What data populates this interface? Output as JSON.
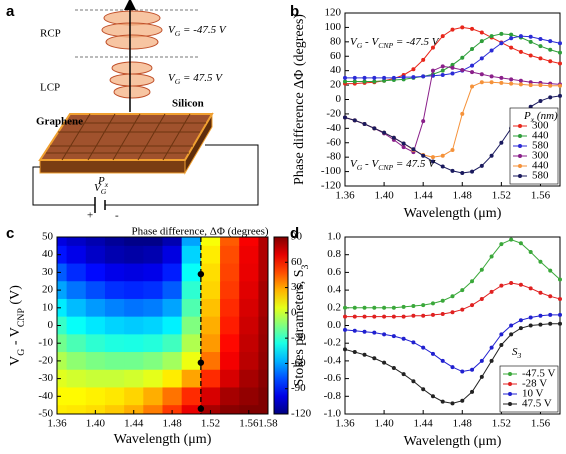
{
  "panel_labels": [
    "a",
    "b",
    "c",
    "d"
  ],
  "diagram": {
    "rcp": "RCP",
    "lcp": "LCP",
    "vg_top": [
      "V",
      "G",
      " = -47.5 V"
    ],
    "vg_bottom": [
      "V",
      "G",
      " = 47.5 V"
    ],
    "graphene": "Graphene",
    "silicon": "Silicon",
    "period": [
      "P",
      "x"
    ],
    "gate": [
      "V",
      "G"
    ],
    "plus": "+",
    "minus": "-"
  },
  "chart_data": [
    {
      "type": "line",
      "x": [
        1.36,
        1.37,
        1.38,
        1.39,
        1.4,
        1.41,
        1.42,
        1.43,
        1.44,
        1.45,
        1.46,
        1.47,
        1.48,
        1.49,
        1.5,
        1.51,
        1.52,
        1.53,
        1.54,
        1.55,
        1.56,
        1.57,
        1.58
      ],
      "xlim": [
        1.36,
        1.58
      ],
      "xticks": [
        1.36,
        {
          "value": 1.4,
          "label": "1.40"
        },
        1.44,
        1.48,
        1.52,
        1.56
      ],
      "ylim": [
        -120,
        120
      ],
      "yticks": [
        -120,
        -100,
        -80,
        -60,
        -40,
        -20,
        0,
        20,
        40,
        60,
        80,
        100,
        120
      ],
      "xlabel": "Wavelength (μm)",
      "ylabel": "Phase difference ΔΦ (degrees)",
      "annotations": [
        [
          "V",
          "G",
          " - V",
          "CNP",
          " = -47.5 V"
        ],
        [
          "V",
          "G",
          " - V",
          "CNP",
          " = 47.5 V"
        ]
      ],
      "legend_title": [
        "P",
        "x",
        "  (nm)"
      ],
      "legend": "lower right",
      "series": [
        {
          "name": "300",
          "color": "#e8261b",
          "values": [
            22,
            22,
            23,
            24,
            26,
            29,
            34,
            42,
            55,
            72,
            88,
            97,
            100,
            98,
            93,
            86,
            79,
            72,
            66,
            61,
            57,
            53,
            50
          ]
        },
        {
          "name": "440",
          "color": "#2e9e3a",
          "values": [
            25,
            25,
            25,
            25,
            26,
            27,
            28,
            30,
            32,
            35,
            40,
            48,
            58,
            70,
            81,
            88,
            91,
            90,
            86,
            80,
            74,
            69,
            65
          ]
        },
        {
          "name": "580",
          "color": "#2b2bd6",
          "values": [
            30,
            30,
            30,
            30,
            30,
            30,
            31,
            31,
            32,
            33,
            34,
            36,
            40,
            47,
            57,
            68,
            78,
            85,
            88,
            87,
            84,
            81,
            78
          ]
        },
        {
          "name": "300",
          "color": "#8a1f8a",
          "values": [
            -25,
            -29,
            -34,
            -40,
            -47,
            -56,
            -66,
            -73,
            -30,
            40,
            46,
            44,
            41,
            38,
            35,
            32,
            30,
            28,
            26,
            24,
            23,
            22,
            21
          ]
        },
        {
          "name": "440",
          "color": "#f5923a",
          "values": [
            -25,
            -29,
            -34,
            -40,
            -46,
            -53,
            -61,
            -70,
            -77,
            -80,
            -78,
            -70,
            -20,
            18,
            24,
            24,
            23,
            22,
            21,
            20,
            20,
            19,
            19
          ]
        },
        {
          "name": "580",
          "color": "#1a1a5e",
          "values": [
            -25,
            -29,
            -34,
            -40,
            -46,
            -53,
            -61,
            -69,
            -78,
            -86,
            -93,
            -99,
            -102,
            -100,
            -92,
            -78,
            -60,
            -40,
            -22,
            -10,
            -2,
            3,
            5
          ]
        }
      ]
    },
    {
      "type": "heatmap",
      "title": "Phase difference, ΔΦ (degrees)",
      "x": [
        1.36,
        1.38,
        1.4,
        1.42,
        1.44,
        1.46,
        1.48,
        1.5,
        1.52,
        1.54,
        1.56,
        1.58
      ],
      "y": [
        50,
        40,
        30,
        20,
        10,
        0,
        -10,
        -20,
        -30,
        -40,
        -50
      ],
      "z": [
        [
          -100,
          -105,
          -110,
          -115,
          -118,
          -118,
          -110,
          -60,
          10,
          45,
          65,
          80
        ],
        [
          -90,
          -98,
          -105,
          -110,
          -112,
          -110,
          -100,
          -50,
          15,
          48,
          67,
          80
        ],
        [
          -75,
          -85,
          -92,
          -98,
          -100,
          -98,
          -88,
          -40,
          18,
          50,
          68,
          80
        ],
        [
          -60,
          -70,
          -78,
          -84,
          -86,
          -84,
          -75,
          -32,
          20,
          52,
          70,
          82
        ],
        [
          -45,
          -55,
          -62,
          -67,
          -70,
          -68,
          -60,
          -25,
          24,
          55,
          72,
          82
        ],
        [
          -30,
          -40,
          -46,
          -50,
          -52,
          -50,
          -44,
          -15,
          28,
          58,
          74,
          84
        ],
        [
          -18,
          -26,
          -32,
          -35,
          -36,
          -34,
          -28,
          -5,
          32,
          62,
          76,
          85
        ],
        [
          -5,
          -12,
          -16,
          -18,
          -18,
          -15,
          -8,
          8,
          40,
          66,
          78,
          86
        ],
        [
          5,
          2,
          0,
          0,
          2,
          6,
          15,
          30,
          55,
          72,
          82,
          88
        ],
        [
          12,
          12,
          14,
          16,
          20,
          28,
          40,
          55,
          72,
          82,
          86,
          90
        ],
        [
          15,
          16,
          18,
          22,
          28,
          38,
          52,
          68,
          82,
          88,
          90,
          90
        ]
      ],
      "xlim": [
        1.36,
        1.58
      ],
      "xticks": [
        1.36,
        {
          "value": 1.4,
          "label": "1.40"
        },
        1.44,
        1.48,
        1.52,
        1.56,
        1.58
      ],
      "ylim": [
        -50,
        50
      ],
      "yticks": [
        -50,
        -40,
        -30,
        -20,
        -10,
        0,
        10,
        20,
        30,
        40,
        50
      ],
      "zlim": [
        -120,
        90
      ],
      "zticks": [
        90,
        60,
        30,
        0,
        -30,
        -60,
        -90,
        -120
      ],
      "colormap": "jet",
      "xlabel": "Wavelength (μm)",
      "ylabel": [
        "V",
        "G",
        " - V",
        "CNP",
        " (V)"
      ],
      "marker_x": 1.51,
      "marker_y": [
        29,
        -21,
        -47
      ]
    },
    {
      "type": "line",
      "x": [
        1.36,
        1.37,
        1.38,
        1.39,
        1.4,
        1.41,
        1.42,
        1.43,
        1.44,
        1.45,
        1.46,
        1.47,
        1.48,
        1.49,
        1.5,
        1.51,
        1.52,
        1.53,
        1.54,
        1.55,
        1.56,
        1.57,
        1.58
      ],
      "xlim": [
        1.36,
        1.58
      ],
      "xticks": [
        1.36,
        {
          "value": 1.4,
          "label": "1.40"
        },
        1.44,
        1.48,
        1.52,
        1.56
      ],
      "ylim": [
        -1,
        1
      ],
      "yticks": [
        {
          "value": -1,
          "label": "-1.0"
        },
        -0.8,
        -0.6,
        -0.4,
        -0.2,
        {
          "value": 0,
          "label": "0.0"
        },
        0.2,
        0.4,
        0.6,
        0.8,
        {
          "value": 1,
          "label": "1.0"
        }
      ],
      "xlabel": "Wavelength (μm)",
      "ylabel": [
        "Stokes parameters, S",
        "3"
      ],
      "annotations": [
        [
          "S",
          "3"
        ]
      ],
      "legend": "lower right",
      "series": [
        {
          "name": "-47.5 V",
          "color": "#3aa83a",
          "values": [
            0.2,
            0.2,
            0.2,
            0.2,
            0.2,
            0.2,
            0.21,
            0.22,
            0.23,
            0.25,
            0.28,
            0.33,
            0.4,
            0.5,
            0.63,
            0.78,
            0.92,
            0.97,
            0.93,
            0.83,
            0.72,
            0.62,
            0.52
          ]
        },
        {
          "name": "-28 V",
          "color": "#e02020",
          "values": [
            0.1,
            0.1,
            0.1,
            0.1,
            0.1,
            0.1,
            0.1,
            0.11,
            0.11,
            0.12,
            0.13,
            0.15,
            0.18,
            0.23,
            0.3,
            0.38,
            0.45,
            0.48,
            0.46,
            0.42,
            0.37,
            0.33,
            0.3
          ]
        },
        {
          "name": "10 V",
          "color": "#2020d0",
          "values": [
            -0.05,
            -0.06,
            -0.07,
            -0.08,
            -0.1,
            -0.12,
            -0.15,
            -0.19,
            -0.25,
            -0.32,
            -0.4,
            -0.47,
            -0.52,
            -0.5,
            -0.4,
            -0.25,
            -0.1,
            0,
            0.06,
            0.09,
            0.11,
            0.12,
            0.12
          ]
        },
        {
          "name": "47.5 V",
          "color": "#222222",
          "values": [
            -0.27,
            -0.3,
            -0.33,
            -0.37,
            -0.42,
            -0.48,
            -0.55,
            -0.63,
            -0.72,
            -0.8,
            -0.86,
            -0.88,
            -0.85,
            -0.75,
            -0.58,
            -0.4,
            -0.22,
            -0.1,
            -0.03,
            0,
            0.01,
            0.02,
            0.02
          ]
        }
      ]
    }
  ]
}
